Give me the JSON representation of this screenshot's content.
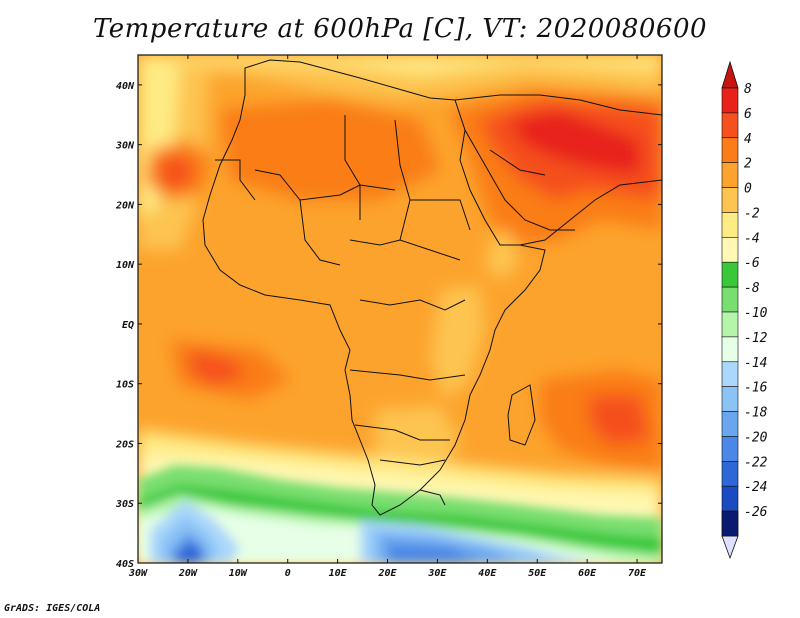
{
  "title": "Temperature at 600hPa [C], VT: 2020080600",
  "credit": "GrADS: IGES/COLA",
  "map": {
    "lon_range": [
      -30,
      75
    ],
    "lat_range": [
      -40,
      45
    ],
    "lat_ticks": [
      {
        "value": 40,
        "label": "40N"
      },
      {
        "value": 30,
        "label": "30N"
      },
      {
        "value": 20,
        "label": "20N"
      },
      {
        "value": 10,
        "label": "10N"
      },
      {
        "value": 0,
        "label": "EQ"
      },
      {
        "value": -10,
        "label": "10S"
      },
      {
        "value": -20,
        "label": "20S"
      },
      {
        "value": -30,
        "label": "30S"
      },
      {
        "value": -40,
        "label": "40S"
      }
    ],
    "lon_ticks": [
      {
        "value": -30,
        "label": "30W"
      },
      {
        "value": -20,
        "label": "20W"
      },
      {
        "value": -10,
        "label": "10W"
      },
      {
        "value": 0,
        "label": "0"
      },
      {
        "value": 10,
        "label": "10E"
      },
      {
        "value": 20,
        "label": "20E"
      },
      {
        "value": 30,
        "label": "30E"
      },
      {
        "value": 40,
        "label": "40E"
      },
      {
        "value": 50,
        "label": "50E"
      },
      {
        "value": 60,
        "label": "60E"
      },
      {
        "value": 70,
        "label": "70E"
      }
    ]
  },
  "colorbar": {
    "levels": [
      {
        "label": "8",
        "color": "#e8211a"
      },
      {
        "label": "6",
        "color": "#f5501e"
      },
      {
        "label": "4",
        "color": "#fa7d19"
      },
      {
        "label": "2",
        "color": "#fca32d"
      },
      {
        "label": "0",
        "color": "#fdc450"
      },
      {
        "label": "-2",
        "color": "#feeb84"
      },
      {
        "label": "-4",
        "color": "#fff8b4"
      },
      {
        "label": "-6",
        "color": "#38c83a"
      },
      {
        "label": "-8",
        "color": "#78de6f"
      },
      {
        "label": "-10",
        "color": "#b4f5aa"
      },
      {
        "label": "-12",
        "color": "#e6ffe6"
      },
      {
        "label": "-14",
        "color": "#aad7fa"
      },
      {
        "label": "-16",
        "color": "#8cc3f5"
      },
      {
        "label": "-18",
        "color": "#6aa5ef"
      },
      {
        "label": "-20",
        "color": "#4b87e6"
      },
      {
        "label": "-22",
        "color": "#2e68d8"
      },
      {
        "label": "-24",
        "color": "#1a4bc3"
      },
      {
        "label": "-26",
        "color": "#0d2a8c"
      }
    ],
    "top_color": "#c8140f",
    "bottom_color": "#dde0ff",
    "bottom_extra_color": "#0a1a6e"
  }
}
